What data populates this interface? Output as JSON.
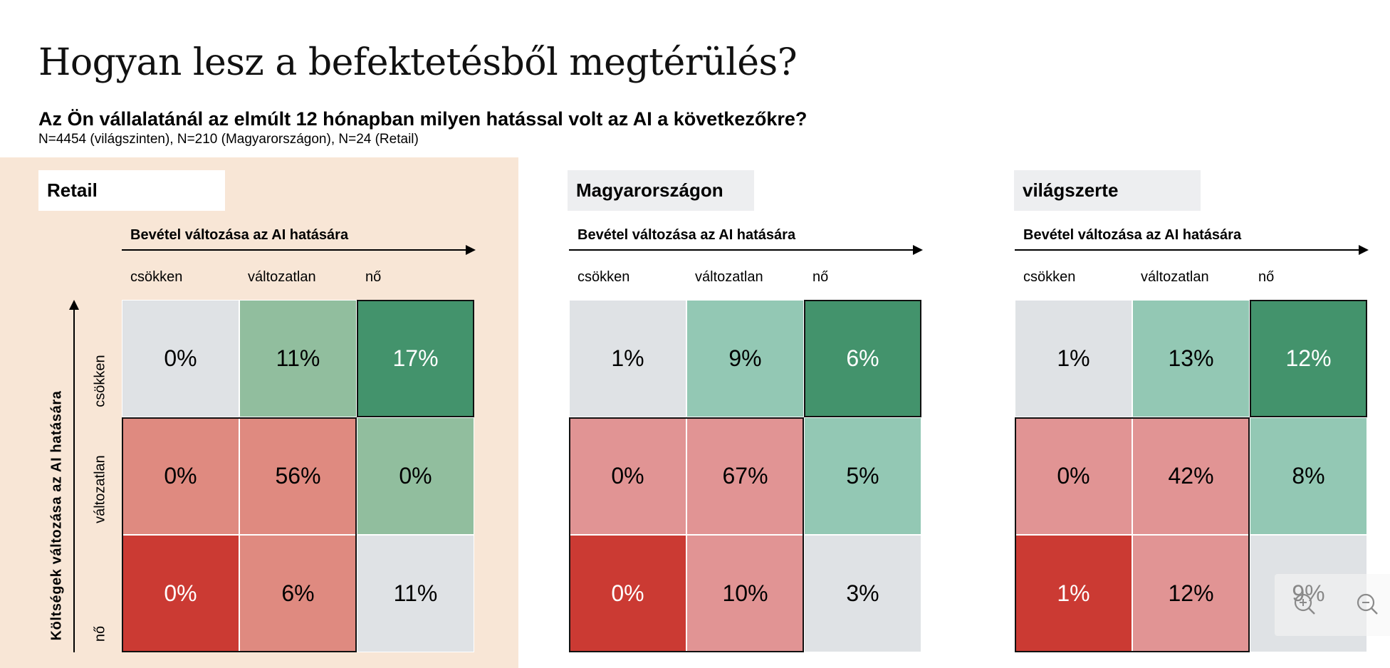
{
  "title": "Hogyan lesz a befektetésből megtérülés?",
  "question": "Az Ön vállalatánál az elmúlt 12 hónapban milyen hatással volt az AI a következőkre?",
  "sample": "N=4454 (világszinten), N=210 (Magyarországon), N=24 (Retail)",
  "colors": {
    "peach_bg": "#F8E6D6",
    "neutral": "#DFE2E5",
    "dark_green": "#43936C",
    "dark_red": "#CB3A33"
  },
  "y_axis_title": "Költségek változása az AI hatására",
  "row_labels": [
    "csökken",
    "változatlan",
    "nő"
  ],
  "zoom_controls": {
    "zoom_in_icon": "zoom-in-icon",
    "zoom_out_icon": "zoom-out-icon"
  },
  "chart_data": [
    {
      "type": "heatmap",
      "title": "Retail",
      "xlabel": "Bevétel változása az AI hatására",
      "ylabel": "Költségek változása az AI hatására",
      "x_categories": [
        "csökken",
        "változatlan",
        "nő"
      ],
      "y_categories": [
        "csökken",
        "változatlan",
        "nő"
      ],
      "values": [
        [
          "0%",
          "11%",
          "17%"
        ],
        [
          "0%",
          "56%",
          "0%"
        ],
        [
          "0%",
          "6%",
          "11%"
        ]
      ],
      "cell_colors": [
        [
          "#DFE2E5",
          "#91BE9E",
          "#43936C"
        ],
        [
          "#DF8A80",
          "#DF8A80",
          "#91BE9E"
        ],
        [
          "#CB3A33",
          "#DF8A80",
          "#DFE2E5"
        ]
      ],
      "text_colors": [
        [
          "#000000",
          "#000000",
          "#FFFFFF"
        ],
        [
          "#000000",
          "#000000",
          "#000000"
        ],
        [
          "#FFFFFF",
          "#000000",
          "#000000"
        ]
      ],
      "header_bg": "#FFFFFF"
    },
    {
      "type": "heatmap",
      "title": "Magyarországon",
      "xlabel": "Bevétel változása az AI hatására",
      "ylabel": "Költségek változása az AI hatására",
      "x_categories": [
        "csökken",
        "változatlan",
        "nő"
      ],
      "y_categories": [
        "csökken",
        "változatlan",
        "nő"
      ],
      "values": [
        [
          "1%",
          "9%",
          "6%"
        ],
        [
          "0%",
          "67%",
          "5%"
        ],
        [
          "0%",
          "10%",
          "3%"
        ]
      ],
      "cell_colors": [
        [
          "#DFE2E5",
          "#93C8B4",
          "#43936C"
        ],
        [
          "#E19494",
          "#E19494",
          "#93C8B4"
        ],
        [
          "#CB3A33",
          "#E19494",
          "#DFE2E5"
        ]
      ],
      "text_colors": [
        [
          "#000000",
          "#000000",
          "#FFFFFF"
        ],
        [
          "#000000",
          "#000000",
          "#000000"
        ],
        [
          "#FFFFFF",
          "#000000",
          "#000000"
        ]
      ],
      "header_bg": "#EDEEF0"
    },
    {
      "type": "heatmap",
      "title": "világszerte",
      "xlabel": "Bevétel változása az AI hatására",
      "ylabel": "Költségek változása az AI hatására",
      "x_categories": [
        "csökken",
        "változatlan",
        "nő"
      ],
      "y_categories": [
        "csökken",
        "változatlan",
        "nő"
      ],
      "values": [
        [
          "1%",
          "13%",
          "12%"
        ],
        [
          "0%",
          "42%",
          "8%"
        ],
        [
          "1%",
          "12%",
          "9%"
        ]
      ],
      "cell_colors": [
        [
          "#DFE2E5",
          "#93C8B4",
          "#43936C"
        ],
        [
          "#E19494",
          "#E19494",
          "#93C8B4"
        ],
        [
          "#CB3A33",
          "#E19494",
          "#DFE2E5"
        ]
      ],
      "text_colors": [
        [
          "#000000",
          "#000000",
          "#FFFFFF"
        ],
        [
          "#000000",
          "#000000",
          "#000000"
        ],
        [
          "#FFFFFF",
          "#000000",
          "#000000"
        ]
      ],
      "header_bg": "#EDEEF0"
    }
  ]
}
